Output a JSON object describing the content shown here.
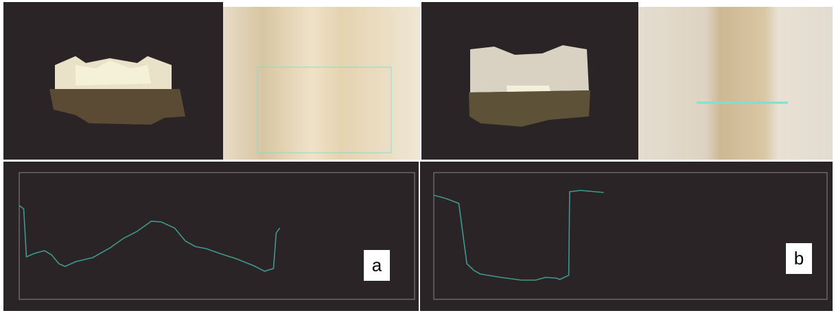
{
  "chart_data": [
    {
      "type": "line",
      "annotation": "a",
      "color": "#3f9a8c",
      "x": [
        0,
        0.05,
        0.08,
        0.17,
        0.28,
        0.36,
        0.44,
        0.51,
        0.63,
        0.82,
        1.01,
        1.16,
        1.31,
        1.47,
        1.58,
        1.73,
        1.85,
        1.96,
        2.08,
        2.23,
        2.42,
        2.61,
        2.73,
        2.83,
        2.86,
        2.9
      ],
      "values": [
        1.37,
        1.32,
        0.62,
        0.67,
        0.71,
        0.65,
        0.52,
        0.48,
        0.55,
        0.61,
        0.75,
        0.89,
        0.99,
        1.14,
        1.13,
        1.04,
        0.85,
        0.77,
        0.74,
        0.67,
        0.59,
        0.49,
        0.41,
        0.45,
        0.97,
        1.04
      ],
      "xlim": [
        0,
        4.4
      ],
      "ylim": [
        0,
        1.85
      ]
    },
    {
      "type": "line",
      "annotation": "b",
      "color": "#3f9a8c",
      "x": [
        0,
        0.14,
        0.28,
        0.37,
        0.45,
        0.52,
        0.75,
        0.98,
        1.14,
        1.25,
        1.37,
        1.41,
        1.51,
        1.52,
        1.64,
        1.9
      ],
      "values": [
        1.52,
        1.47,
        1.4,
        0.52,
        0.42,
        0.37,
        0.32,
        0.28,
        0.28,
        0.32,
        0.31,
        0.29,
        0.35,
        1.57,
        1.59,
        1.56
      ],
      "xlim": [
        0,
        4.4
      ],
      "ylim": [
        0,
        1.85
      ]
    }
  ]
}
